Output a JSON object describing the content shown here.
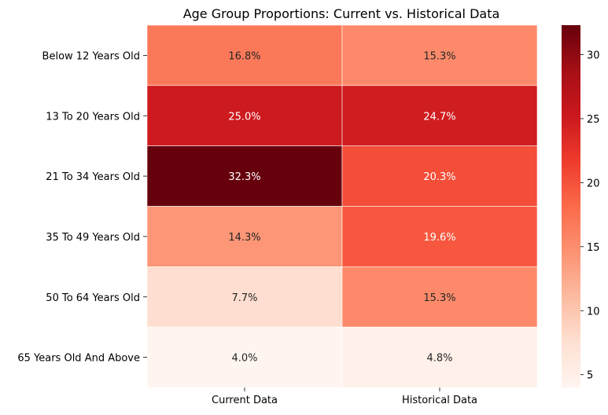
{
  "chart_data": {
    "type": "heatmap",
    "title": "Age Group Proportions: Current vs. Historical Data",
    "xlabel": "",
    "ylabel": "",
    "columns": [
      "Current Data",
      "Historical Data"
    ],
    "rows": [
      "Below 12 Years Old",
      "13 To 20 Years Old",
      "21 To 34 Years Old",
      "35 To 49 Years Old",
      "50 To 64 Years Old",
      "65 Years Old And Above"
    ],
    "values": [
      [
        16.8,
        15.3
      ],
      [
        25.0,
        24.7
      ],
      [
        32.3,
        20.3
      ],
      [
        14.3,
        19.6
      ],
      [
        7.7,
        15.3
      ],
      [
        4.0,
        4.8
      ]
    ],
    "cell_labels": [
      [
        "16.8%",
        "15.3%"
      ],
      [
        "25.0%",
        "24.7%"
      ],
      [
        "32.3%",
        "20.3%"
      ],
      [
        "14.3%",
        "19.6%"
      ],
      [
        "7.7%",
        "15.3%"
      ],
      [
        "4.0%",
        "4.8%"
      ]
    ],
    "colormap": "Reds",
    "value_range": [
      4.0,
      32.3
    ],
    "colorbar_ticks": [
      "5",
      "10",
      "15",
      "20",
      "25",
      "30"
    ],
    "colorbar_tick_values": [
      5,
      10,
      15,
      20,
      25,
      30
    ],
    "grid": false,
    "legend": "colorbar-right"
  }
}
